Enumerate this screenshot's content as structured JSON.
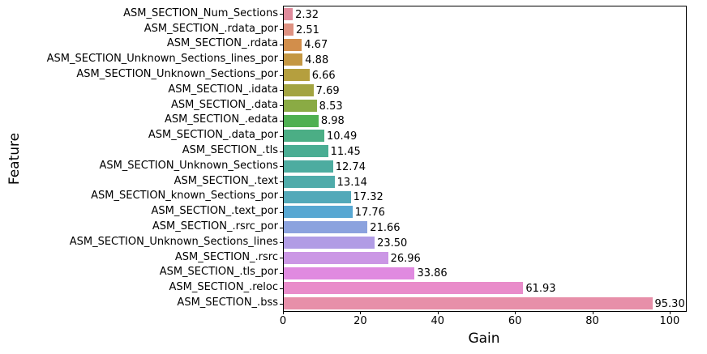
{
  "chart_data": {
    "type": "bar",
    "orientation": "horizontal",
    "title": "",
    "xlabel": "Gain",
    "ylabel": "Feature",
    "xlim": [
      0,
      104
    ],
    "xticks": [
      0,
      20,
      40,
      60,
      80,
      100
    ],
    "grid": false,
    "legend": false,
    "categories": [
      "ASM_SECTION_Num_Sections",
      "ASM_SECTION_.rdata_por",
      "ASM_SECTION_.rdata",
      "ASM_SECTION_Unknown_Sections_lines_por",
      "ASM_SECTION_Unknown_Sections_por",
      "ASM_SECTION_.idata",
      "ASM_SECTION_.data",
      "ASM_SECTION_.edata",
      "ASM_SECTION_.data_por",
      "ASM_SECTION_.tls",
      "ASM_SECTION_Unknown_Sections",
      "ASM_SECTION_.text",
      "ASM_SECTION_known_Sections_por",
      "ASM_SECTION_.text_por",
      "ASM_SECTION_.rsrc_por",
      "ASM_SECTION_Unknown_Sections_lines",
      "ASM_SECTION_.rsrc",
      "ASM_SECTION_.tls_por",
      "ASM_SECTION_.reloc",
      "ASM_SECTION_.bss"
    ],
    "values": [
      2.32,
      2.51,
      4.67,
      4.88,
      6.66,
      7.69,
      8.53,
      8.98,
      10.49,
      11.45,
      12.74,
      13.14,
      17.32,
      17.76,
      21.66,
      23.5,
      26.96,
      33.86,
      61.93,
      95.3
    ],
    "value_labels": [
      "2.32",
      "2.51",
      "4.67",
      "4.88",
      "6.66",
      "7.69",
      "8.53",
      "8.98",
      "10.49",
      "11.45",
      "12.74",
      "13.14",
      "17.32",
      "17.76",
      "21.66",
      "23.50",
      "26.96",
      "33.86",
      "61.93",
      "95.30"
    ],
    "bar_colors": [
      "#e08b9c",
      "#de9181",
      "#d28e4b",
      "#c49742",
      "#b59f3e",
      "#a3a441",
      "#8aab44",
      "#4fb051",
      "#4bae85",
      "#4aad93",
      "#4daca0",
      "#4fabaa",
      "#53a9b9",
      "#57a7d2",
      "#8ba2de",
      "#b19ce5",
      "#cb97e5",
      "#e08ae0",
      "#e98cca",
      "#e78fa9"
    ],
    "axis_color": "#000000",
    "text_color": "#000000",
    "background_color": "#ffffff"
  }
}
